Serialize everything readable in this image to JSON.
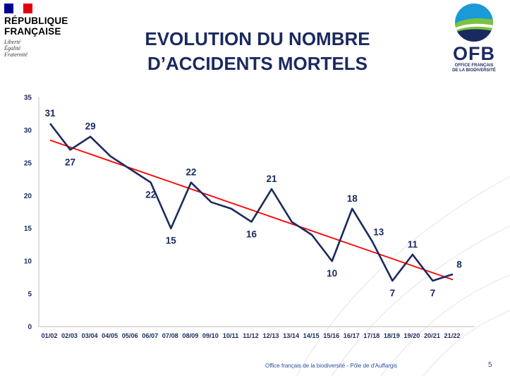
{
  "header": {
    "title_line1": "EVOLUTION DU NOMBRE",
    "title_line2": "D’ACCIDENTS MORTELS"
  },
  "rf_logo": {
    "line1": "RÉPUBLIQUE",
    "line2": "FRANÇAISE",
    "motto1": "Liberté",
    "motto2": "Égalité",
    "motto3": "Fraternité",
    "flag_colors": [
      "#000091",
      "#ffffff",
      "#e1000f"
    ]
  },
  "ofb_logo": {
    "word": "OFB",
    "sub1": "OFFICE FRANÇAIS",
    "sub2": "DE LA BIODIVERSITÉ",
    "colors": [
      "#1a9ad6",
      "#7cc242",
      "#1b2a5e"
    ]
  },
  "footer": {
    "text": "Office français de la biodiversité  -  Pôle de d'Auffargis",
    "page": "5"
  },
  "chart_data": {
    "type": "line",
    "title": "EVOLUTION DU NOMBRE D’ACCIDENTS MORTELS",
    "xlabel": "",
    "ylabel": "",
    "categories": [
      "01/02",
      "02/03",
      "03/04",
      "04/05",
      "05/06",
      "06/07",
      "07/08",
      "08/09",
      "09/10",
      "10/11",
      "11/12",
      "12/13",
      "13/14",
      "14/15",
      "15/16",
      "16/17",
      "17/18",
      "18/19",
      "19/20",
      "20/21",
      "21/22"
    ],
    "series": [
      {
        "values": [
          31,
          27,
          29,
          26,
          24,
          22,
          15,
          22,
          19,
          18,
          16,
          21,
          16,
          14,
          10,
          18,
          13,
          7,
          11,
          7,
          8
        ],
        "color": "#1b2a5e"
      }
    ],
    "data_labels": [
      {
        "index": 0,
        "text": "31",
        "position": "above"
      },
      {
        "index": 1,
        "text": "27",
        "position": "below"
      },
      {
        "index": 2,
        "text": "29",
        "position": "above"
      },
      {
        "index": 5,
        "text": "22",
        "position": "below"
      },
      {
        "index": 6,
        "text": "15",
        "position": "below"
      },
      {
        "index": 7,
        "text": "22",
        "position": "above"
      },
      {
        "index": 10,
        "text": "16",
        "position": "below"
      },
      {
        "index": 11,
        "text": "21",
        "position": "above"
      },
      {
        "index": 14,
        "text": "10",
        "position": "below"
      },
      {
        "index": 15,
        "text": "18",
        "position": "above"
      },
      {
        "index": 16,
        "text": "13",
        "position": "above-right"
      },
      {
        "index": 17,
        "text": "7",
        "position": "below"
      },
      {
        "index": 18,
        "text": "11",
        "position": "above"
      },
      {
        "index": 19,
        "text": "7",
        "position": "below"
      },
      {
        "index": 20,
        "text": "8",
        "position": "above-right"
      }
    ],
    "trendline": {
      "type": "linear",
      "color": "#ff0000"
    },
    "ylim": [
      0,
      35
    ],
    "yticks": [
      0,
      5,
      10,
      15,
      20,
      25,
      30,
      35
    ],
    "grid": false,
    "legend": "none"
  }
}
